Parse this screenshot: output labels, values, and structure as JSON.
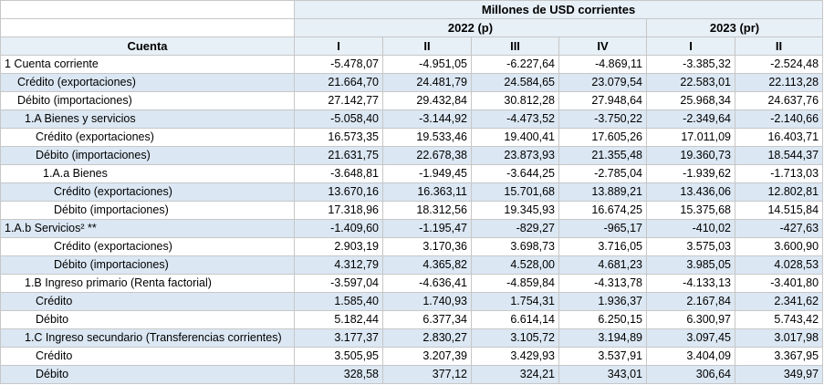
{
  "header": {
    "units": "Millones de USD corrientes",
    "year_2022": "2022 (p)",
    "year_2023": "2023 (pr)",
    "cuenta": "Cuenta",
    "quarters": [
      "I",
      "II",
      "III",
      "IV",
      "I",
      "II"
    ]
  },
  "rows": [
    {
      "label": "1 Cuenta corriente",
      "indent": 0,
      "shade": false,
      "values": [
        "-5.478,07",
        "-4.951,05",
        "-6.227,64",
        "-4.869,11",
        "-3.385,32",
        "-2.524,48"
      ]
    },
    {
      "label": "Crédito (exportaciones)",
      "indent": 1,
      "shade": true,
      "values": [
        "21.664,70",
        "24.481,79",
        "24.584,65",
        "23.079,54",
        "22.583,01",
        "22.113,28"
      ]
    },
    {
      "label": "Débito (importaciones)",
      "indent": 1,
      "shade": false,
      "values": [
        "27.142,77",
        "29.432,84",
        "30.812,28",
        "27.948,64",
        "25.968,34",
        "24.637,76"
      ]
    },
    {
      "label": "1.A Bienes y servicios",
      "indent": 2,
      "shade": true,
      "values": [
        "-5.058,40",
        "-3.144,92",
        "-4.473,52",
        "-3.750,22",
        "-2.349,64",
        "-2.140,66"
      ]
    },
    {
      "label": "Crédito (exportaciones)",
      "indent": 3,
      "shade": false,
      "values": [
        "16.573,35",
        "19.533,46",
        "19.400,41",
        "17.605,26",
        "17.011,09",
        "16.403,71"
      ]
    },
    {
      "label": "Débito (importaciones)",
      "indent": 3,
      "shade": true,
      "values": [
        "21.631,75",
        "22.678,38",
        "23.873,93",
        "21.355,48",
        "19.360,73",
        "18.544,37"
      ]
    },
    {
      "label": "1.A.a Bienes",
      "indent": 4,
      "shade": false,
      "values": [
        "-3.648,81",
        "-1.949,45",
        "-3.644,25",
        "-2.785,04",
        "-1.939,62",
        "-1.713,03"
      ]
    },
    {
      "label": "Crédito (exportaciones)",
      "indent": 5,
      "shade": true,
      "values": [
        "13.670,16",
        "16.363,11",
        "15.701,68",
        "13.889,21",
        "13.436,06",
        "12.802,81"
      ]
    },
    {
      "label": "Débito (importaciones)",
      "indent": 5,
      "shade": false,
      "values": [
        "17.318,96",
        "18.312,56",
        "19.345,93",
        "16.674,25",
        "15.375,68",
        "14.515,84"
      ]
    },
    {
      "label": "1.A.b Servicios² **",
      "indent": 0,
      "shade": true,
      "values": [
        "-1.409,60",
        "-1.195,47",
        "-829,27",
        "-965,17",
        "-410,02",
        "-427,63"
      ]
    },
    {
      "label": "Crédito (exportaciones)",
      "indent": 5,
      "shade": false,
      "values": [
        "2.903,19",
        "3.170,36",
        "3.698,73",
        "3.716,05",
        "3.575,03",
        "3.600,90"
      ]
    },
    {
      "label": "Débito (importaciones)",
      "indent": 5,
      "shade": true,
      "values": [
        "4.312,79",
        "4.365,82",
        "4.528,00",
        "4.681,23",
        "3.985,05",
        "4.028,53"
      ]
    },
    {
      "label": "1.B Ingreso primario (Renta factorial)",
      "indent": 2,
      "shade": false,
      "values": [
        "-3.597,04",
        "-4.636,41",
        "-4.859,84",
        "-4.313,78",
        "-4.133,13",
        "-3.401,80"
      ]
    },
    {
      "label": "Crédito",
      "indent": 3,
      "shade": true,
      "values": [
        "1.585,40",
        "1.740,93",
        "1.754,31",
        "1.936,37",
        "2.167,84",
        "2.341,62"
      ]
    },
    {
      "label": "Débito",
      "indent": 3,
      "shade": false,
      "values": [
        "5.182,44",
        "6.377,34",
        "6.614,14",
        "6.250,15",
        "6.300,97",
        "5.743,42"
      ]
    },
    {
      "label": "1.C Ingreso secundario (Transferencias corrientes)",
      "indent": 2,
      "shade": true,
      "values": [
        "3.177,37",
        "2.830,27",
        "3.105,72",
        "3.194,89",
        "3.097,45",
        "3.017,98"
      ]
    },
    {
      "label": "Crédito",
      "indent": 3,
      "shade": false,
      "values": [
        "3.505,95",
        "3.207,39",
        "3.429,93",
        "3.537,91",
        "3.404,09",
        "3.367,95"
      ]
    },
    {
      "label": "Débito",
      "indent": 3,
      "shade": true,
      "values": [
        "328,58",
        "377,12",
        "324,21",
        "343,01",
        "306,64",
        "349,97"
      ]
    }
  ]
}
